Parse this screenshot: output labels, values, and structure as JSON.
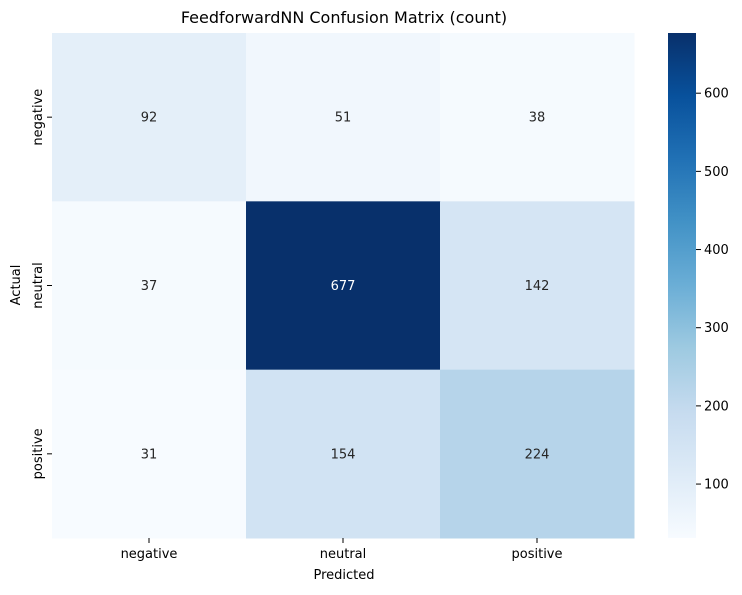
{
  "chart_data": {
    "type": "heatmap",
    "title": "FeedforwardNN Confusion Matrix (count)",
    "xlabel": "Predicted",
    "ylabel": "Actual",
    "x_categories": [
      "negative",
      "neutral",
      "positive"
    ],
    "y_categories": [
      "negative",
      "neutral",
      "positive"
    ],
    "values": [
      [
        92,
        51,
        38
      ],
      [
        37,
        677,
        142
      ],
      [
        31,
        154,
        224
      ]
    ],
    "colormap": "Blues",
    "colorbar": {
      "min": 31,
      "max": 677,
      "ticks": [
        100,
        200,
        300,
        400,
        500,
        600
      ]
    },
    "grid": false,
    "legend": "none"
  }
}
